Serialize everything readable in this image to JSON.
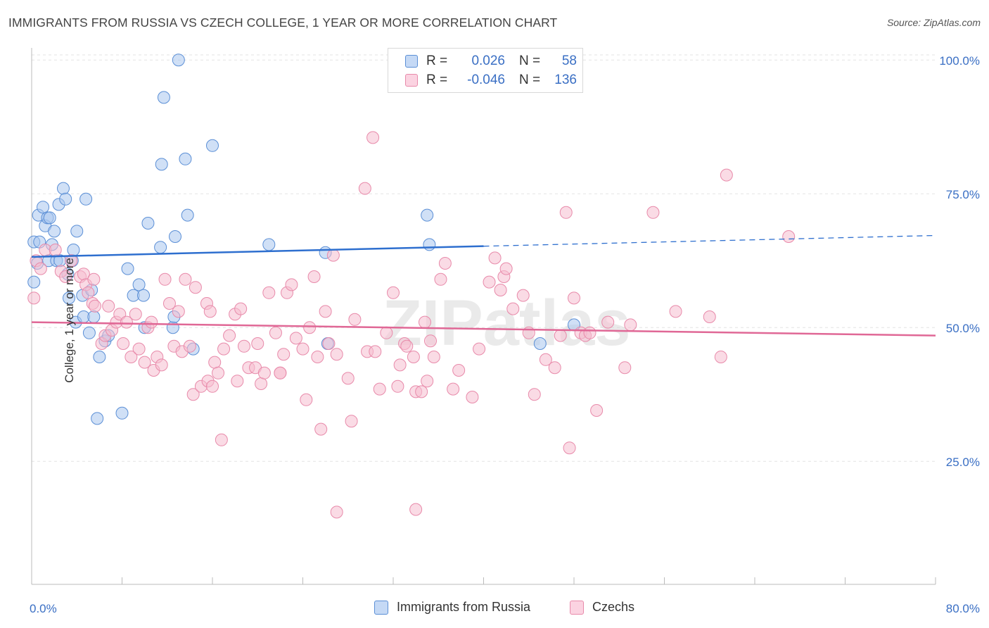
{
  "title": "IMMIGRANTS FROM RUSSIA VS CZECH COLLEGE, 1 YEAR OR MORE CORRELATION CHART",
  "source": "Source: ZipAtlas.com",
  "watermark": "ZIPatlas",
  "colors": {
    "blue_fill": "#a9c6ee",
    "blue_stroke": "#5b8fd6",
    "blue_line": "#2e6fcf",
    "pink_fill": "#f6bdd0",
    "pink_stroke": "#e88aaa",
    "pink_line": "#e06896",
    "axis_label": "#3a6fc4",
    "grid": "#e3e3e3"
  },
  "stats_legend": {
    "rows": [
      {
        "r_label": "R =",
        "r_value": "0.026",
        "n_label": "N =",
        "n_value": "58"
      },
      {
        "r_label": "R =",
        "r_value": "-0.046",
        "n_label": "N =",
        "n_value": "136"
      }
    ]
  },
  "chart_data": {
    "type": "scatter",
    "xlabel": "",
    "ylabel": "College, 1 year or more",
    "xlim": [
      0,
      80
    ],
    "ylim": [
      2,
      102
    ],
    "x_tick_labels": [
      "0.0%",
      "80.0%"
    ],
    "y_ticks": [
      25,
      50,
      75,
      100
    ],
    "y_tick_labels": [
      "25.0%",
      "50.0%",
      "75.0%",
      "100.0%"
    ],
    "grid": true,
    "legend_position": "bottom-center",
    "series": [
      {
        "name": "Immigrants from Russia",
        "color": "blue",
        "trend": {
          "x": [
            0,
            40
          ],
          "y": [
            63.2,
            65.2
          ],
          "dashed_extension_to": [
            80,
            67.2
          ]
        },
        "points": [
          [
            0.2,
            66
          ],
          [
            0.2,
            58.5
          ],
          [
            0.5,
            62
          ],
          [
            0.6,
            71
          ],
          [
            0.7,
            66
          ],
          [
            1,
            72.5
          ],
          [
            1.2,
            69
          ],
          [
            1.4,
            70.5
          ],
          [
            1.5,
            62.5
          ],
          [
            1.6,
            70.5
          ],
          [
            1.8,
            65.5
          ],
          [
            2.0,
            68
          ],
          [
            2.2,
            62.5
          ],
          [
            2.4,
            73
          ],
          [
            2.5,
            62.5
          ],
          [
            2.8,
            76
          ],
          [
            3,
            74
          ],
          [
            3.2,
            60
          ],
          [
            3.3,
            55.5
          ],
          [
            3.6,
            62.5
          ],
          [
            3.7,
            64.5
          ],
          [
            3.9,
            51
          ],
          [
            4.0,
            68
          ],
          [
            4.5,
            56
          ],
          [
            4.6,
            52
          ],
          [
            4.8,
            74
          ],
          [
            5.1,
            49
          ],
          [
            5.3,
            57
          ],
          [
            5.5,
            52
          ],
          [
            5.8,
            33
          ],
          [
            6,
            44.5
          ],
          [
            6.5,
            47.5
          ],
          [
            6.8,
            48.5
          ],
          [
            8.0,
            34
          ],
          [
            8.5,
            61
          ],
          [
            9,
            56
          ],
          [
            9.5,
            58
          ],
          [
            9.9,
            56
          ],
          [
            10,
            50
          ],
          [
            10.3,
            69.5
          ],
          [
            11.4,
            65
          ],
          [
            11.5,
            80.5
          ],
          [
            11.7,
            93
          ],
          [
            12.5,
            50
          ],
          [
            12.6,
            52
          ],
          [
            12.7,
            67
          ],
          [
            13,
            100
          ],
          [
            13.6,
            81.5
          ],
          [
            13.8,
            71
          ],
          [
            14.3,
            46
          ],
          [
            16,
            84
          ],
          [
            21,
            65.5
          ],
          [
            26,
            64
          ],
          [
            26.2,
            47
          ],
          [
            35,
            71
          ],
          [
            35.2,
            65.5
          ],
          [
            45,
            47
          ],
          [
            48,
            50.5
          ]
        ]
      },
      {
        "name": "Czechs",
        "color": "pink",
        "trend": {
          "x": [
            0,
            80
          ],
          "y": [
            51,
            48.5
          ]
        },
        "points": [
          [
            0.2,
            55.5
          ],
          [
            0.4,
            62.5
          ],
          [
            0.8,
            61
          ],
          [
            1.2,
            64.5
          ],
          [
            2.1,
            64.5
          ],
          [
            2.6,
            60.5
          ],
          [
            3.0,
            59.5
          ],
          [
            3.5,
            62.5
          ],
          [
            4.3,
            59.5
          ],
          [
            4.6,
            60
          ],
          [
            4.8,
            58
          ],
          [
            5,
            56.5
          ],
          [
            5.4,
            54.5
          ],
          [
            5.5,
            59
          ],
          [
            5.6,
            54
          ],
          [
            6.2,
            47
          ],
          [
            6.5,
            48.5
          ],
          [
            6.8,
            54
          ],
          [
            7.1,
            49.5
          ],
          [
            7.5,
            51
          ],
          [
            7.8,
            52.5
          ],
          [
            8.1,
            47
          ],
          [
            8.4,
            51
          ],
          [
            8.8,
            44.5
          ],
          [
            9.2,
            52.5
          ],
          [
            9.5,
            46
          ],
          [
            10,
            43.5
          ],
          [
            10.3,
            50
          ],
          [
            10.6,
            51
          ],
          [
            10.8,
            42
          ],
          [
            11.1,
            44.5
          ],
          [
            11.5,
            43
          ],
          [
            11.8,
            59
          ],
          [
            12.2,
            54.5
          ],
          [
            12.6,
            46.5
          ],
          [
            13,
            53
          ],
          [
            13.3,
            45.5
          ],
          [
            13.6,
            59
          ],
          [
            14,
            46.5
          ],
          [
            14.3,
            37.5
          ],
          [
            14.5,
            57.5
          ],
          [
            15,
            39
          ],
          [
            15.5,
            54.5
          ],
          [
            15.6,
            40
          ],
          [
            15.8,
            53
          ],
          [
            16,
            39
          ],
          [
            16.2,
            43.5
          ],
          [
            16.5,
            41.5
          ],
          [
            16.8,
            29
          ],
          [
            17,
            46
          ],
          [
            17.5,
            48.5
          ],
          [
            18,
            52.5
          ],
          [
            18.2,
            40
          ],
          [
            18.5,
            53.5
          ],
          [
            18.8,
            46.5
          ],
          [
            19.2,
            42.5
          ],
          [
            19.8,
            42.5
          ],
          [
            20,
            47
          ],
          [
            20.3,
            39.5
          ],
          [
            20.6,
            41.5
          ],
          [
            21,
            56.5
          ],
          [
            21.6,
            49
          ],
          [
            22,
            41.5
          ],
          [
            22.3,
            45
          ],
          [
            22.6,
            56.5
          ],
          [
            23,
            58
          ],
          [
            23.4,
            48
          ],
          [
            24,
            46
          ],
          [
            24.3,
            36.5
          ],
          [
            24.6,
            50
          ],
          [
            25,
            59.5
          ],
          [
            25.3,
            44.5
          ],
          [
            25.6,
            31
          ],
          [
            26,
            53
          ],
          [
            26.3,
            47
          ],
          [
            26.7,
            63.5
          ],
          [
            27,
            45
          ],
          [
            28,
            40.5
          ],
          [
            28.3,
            32.5
          ],
          [
            28.6,
            51.5
          ],
          [
            29.5,
            76
          ],
          [
            29.7,
            45.5
          ],
          [
            30.2,
            85.5
          ],
          [
            30.4,
            45.5
          ],
          [
            30.8,
            38.5
          ],
          [
            31.4,
            49
          ],
          [
            32,
            56.5
          ],
          [
            32.4,
            39
          ],
          [
            32.6,
            43
          ],
          [
            33,
            47
          ],
          [
            33.2,
            46.5
          ],
          [
            33.8,
            44.5
          ],
          [
            34,
            38
          ],
          [
            34.5,
            38
          ],
          [
            34.8,
            51
          ],
          [
            35,
            40
          ],
          [
            35.3,
            47.5
          ],
          [
            35.6,
            44.5
          ],
          [
            36.2,
            59
          ],
          [
            36.6,
            62
          ],
          [
            37.3,
            38.5
          ],
          [
            37.8,
            42
          ],
          [
            39,
            37
          ],
          [
            39.6,
            46
          ],
          [
            40.5,
            58.5
          ],
          [
            41,
            63
          ],
          [
            41.5,
            57
          ],
          [
            41.8,
            59.5
          ],
          [
            42,
            61
          ],
          [
            42.6,
            53.5
          ],
          [
            43.5,
            56
          ],
          [
            44,
            49
          ],
          [
            44.5,
            37.5
          ],
          [
            45.5,
            44
          ],
          [
            46.3,
            42.5
          ],
          [
            46.8,
            48.5
          ],
          [
            47.3,
            71.5
          ],
          [
            47.6,
            27.5
          ],
          [
            48,
            55.5
          ],
          [
            48.6,
            49
          ],
          [
            49,
            48.5
          ],
          [
            49.4,
            49
          ],
          [
            50,
            34.5
          ],
          [
            51,
            51
          ],
          [
            52.5,
            42.5
          ],
          [
            53,
            50.5
          ],
          [
            55,
            71.5
          ],
          [
            57,
            53
          ],
          [
            60,
            52
          ],
          [
            61,
            44.5
          ],
          [
            61.5,
            78.5
          ],
          [
            67,
            67
          ],
          [
            22,
            41.5
          ],
          [
            27,
            15.5
          ],
          [
            34,
            16
          ]
        ]
      }
    ]
  },
  "axis": {
    "x_left_label": "0.0%",
    "x_right_label": "80.0%",
    "y_title": "College, 1 year or more"
  },
  "bottom_legend": {
    "items": [
      {
        "label": "Immigrants from Russia"
      },
      {
        "label": "Czechs"
      }
    ]
  }
}
